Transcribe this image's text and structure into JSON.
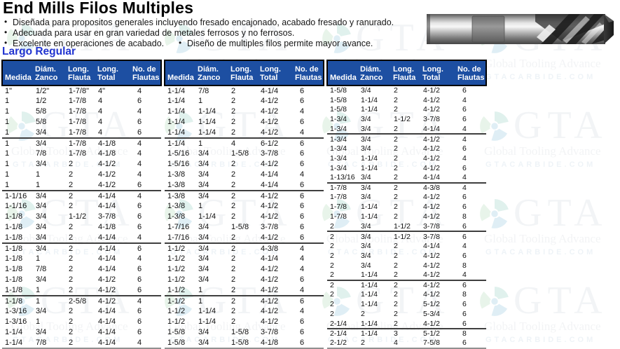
{
  "page": {
    "title": "End Mills Filos Multiples",
    "bullets": [
      "Diseñada para propositos generales incluyendo fresado encajonado, acabado fresado y ranurado.",
      "Adecuada para usar en gran variedad de metales ferrosos y no ferrosos.",
      "Excelente en operaciones de acabado."
    ],
    "bullet_right": "Diseño de multiples filos permite mayor avance.",
    "section_label": "Largo Regular"
  },
  "colors": {
    "table_header_bg": "#1d4fa2",
    "section_label": "#2134d0"
  },
  "watermark": {
    "logo_text": "GTA",
    "tagline": "Global Tooling Advance",
    "site": "GTACARBIDE.COM"
  },
  "table_headers": [
    "Medida",
    "Diám.\nZanco",
    "Long.\nFlauta",
    "Long.\nTotal",
    "No. de\nFlautas"
  ],
  "tables": [
    {
      "rows": [
        [
          "1\"",
          "1/2\"",
          "1-7/8\"",
          "4\"",
          "4"
        ],
        [
          "1",
          "1/2",
          "1-7/8",
          "4",
          "6"
        ],
        [
          "1",
          "5/8",
          "1-7/8",
          "4",
          "4"
        ],
        [
          "1",
          "5/8",
          "1-7/8",
          "4",
          "6"
        ],
        [
          "1",
          "3/4",
          "1-7/8",
          "4",
          "6"
        ],
        [
          "1",
          "3/4",
          "1-7/8",
          "4-1/8",
          "4"
        ],
        [
          "1",
          "7/8",
          "1-7/8",
          "4-1/8",
          "4"
        ],
        [
          "1",
          "3/4",
          "2",
          "4-1/2",
          "4"
        ],
        [
          "1",
          "1",
          "2",
          "4-1/2",
          "4"
        ],
        [
          "1",
          "1",
          "2",
          "4-1/2",
          "6"
        ],
        [
          "1-1/16",
          "3/4",
          "2",
          "4-1/4",
          "4"
        ],
        [
          "1-1/16",
          "3/4",
          "2",
          "4-1/4",
          "6"
        ],
        [
          "1-1/8",
          "3/4",
          "1-1/2",
          "3-7/8",
          "6"
        ],
        [
          "1-1/8",
          "3/4",
          "2",
          "4-1/8",
          "6"
        ],
        [
          "1-1/8",
          "3/4",
          "2",
          "4-1/4",
          "4"
        ],
        [
          "1-1/8",
          "3/4",
          "2",
          "4-1/4",
          "6"
        ],
        [
          "1-1/8",
          "1",
          "2",
          "4-1/4",
          "4"
        ],
        [
          "1-1/8",
          "7/8",
          "2",
          "4-1/4",
          "6"
        ],
        [
          "1-1/8",
          "3/4",
          "2",
          "4-1/2",
          "6"
        ],
        [
          "1-1/8",
          "1",
          "2",
          "4-1/2",
          "6"
        ],
        [
          "1-1/8",
          "1",
          "2-5/8",
          "4-1/2",
          "4"
        ],
        [
          "1-3/16",
          "3/4",
          "2",
          "4-1/4",
          "6"
        ],
        [
          "1-3/16",
          "1",
          "2",
          "4-1/4",
          "6"
        ],
        [
          "1-1/4",
          "3/4",
          "2",
          "4-1/4",
          "6"
        ],
        [
          "1-1/4",
          "7/8",
          "2",
          "4-1/4",
          "4"
        ]
      ]
    },
    {
      "rows": [
        [
          "1-1/4",
          "7/8",
          "2",
          "4-1/4",
          "6"
        ],
        [
          "1-1/4",
          "1",
          "2",
          "4-1/2",
          "6"
        ],
        [
          "1-1/4",
          "1-1/4",
          "2",
          "4-1/2",
          "4"
        ],
        [
          "1-1/4",
          "1-1/4",
          "2",
          "4-1/2",
          "6"
        ],
        [
          "1-1/4",
          "1-1/4",
          "2",
          "4-1/2",
          "4"
        ],
        [
          "1-1/4",
          "1",
          "4",
          "6-1/2",
          "6"
        ],
        [
          "1-5/16",
          "3/4",
          "1-5/8",
          "3-7/8",
          "6"
        ],
        [
          "1-5/16",
          "3/4",
          "2",
          "4-1/2",
          "6"
        ],
        [
          "1-3/8",
          "3/4",
          "2",
          "4-1/4",
          "4"
        ],
        [
          "1-3/8",
          "3/4",
          "2",
          "4-1/4",
          "6"
        ],
        [
          "1-3/8",
          "3/4",
          "2",
          "4-1/2",
          "6"
        ],
        [
          "1-3/8",
          "1",
          "2",
          "4-1/2",
          "6"
        ],
        [
          "1-3/8",
          "1-1/4",
          "2",
          "4-1/2",
          "6"
        ],
        [
          "1-7/16",
          "3/4",
          "1-5/8",
          "3-7/8",
          "6"
        ],
        [
          "1-7/16",
          "3/4",
          "2",
          "4-1/2",
          "6"
        ],
        [
          "1-1/2",
          "3/4",
          "2",
          "4-3/8",
          "4"
        ],
        [
          "1-1/2",
          "3/4",
          "2",
          "4-1/4",
          "4"
        ],
        [
          "1-1/2",
          "3/4",
          "2",
          "4-1/2",
          "4"
        ],
        [
          "1-1/2",
          "3/4",
          "2",
          "4-1/2",
          "6"
        ],
        [
          "1-1/2",
          "1",
          "2",
          "4-1/2",
          "4"
        ],
        [
          "1-1/2",
          "1",
          "2",
          "4-1/2",
          "6"
        ],
        [
          "1-1/2",
          "1-1/4",
          "2",
          "4-1/2",
          "4"
        ],
        [
          "1-1/2",
          "1-1/4",
          "2",
          "4-1/2",
          "6"
        ],
        [
          "1-5/8",
          "3/4",
          "1-5/8",
          "3-7/8",
          "6"
        ],
        [
          "1-5/8",
          "3/4",
          "1-5/8",
          "4-1/8",
          "6"
        ]
      ]
    },
    {
      "rows": [
        [
          "1-5/8",
          "3/4",
          "2",
          "4-1/2",
          "6"
        ],
        [
          "1-5/8",
          "1-1/4",
          "2",
          "4-1/2",
          "4"
        ],
        [
          "1-5/8",
          "1-1/4",
          "2",
          "4-1/2",
          "6"
        ],
        [
          "1-3/4",
          "3/4",
          "1-1/2",
          "3-7/8",
          "6"
        ],
        [
          "1-3/4",
          "3/4",
          "2",
          "4-1/4",
          "4"
        ],
        [
          "1-3/4",
          "3/4",
          "2",
          "4-1/2",
          "4"
        ],
        [
          "1-3/4",
          "3/4",
          "2",
          "4-1/2",
          "6"
        ],
        [
          "1-3/4",
          "1-1/4",
          "2",
          "4-1/2",
          "4"
        ],
        [
          "1-3/4",
          "1-1/4",
          "2",
          "4-1/2",
          "6"
        ],
        [
          "1-13/16",
          "3/4",
          "2",
          "4-1/4",
          "4"
        ],
        [
          "1-7/8",
          "3/4",
          "2",
          "4-3/8",
          "4"
        ],
        [
          "1-7/8",
          "3/4",
          "2",
          "4-1/2",
          "6"
        ],
        [
          "1-7/8",
          "1-1/4",
          "2",
          "4-1/2",
          "6"
        ],
        [
          "1-7/8",
          "1-1/4",
          "2",
          "4-1/2",
          "8"
        ],
        [
          "2",
          "3/4",
          "1-1/2",
          "3-7/8",
          "6"
        ],
        [
          "2",
          "3/4",
          "1-1/2",
          "3-7/8",
          "6"
        ],
        [
          "2",
          "3/4",
          "2",
          "4-1/4",
          "4"
        ],
        [
          "2",
          "3/4",
          "2",
          "4-1/2",
          "6"
        ],
        [
          "2",
          "3/4",
          "2",
          "4-1/2",
          "8"
        ],
        [
          "2",
          "1-1/4",
          "2",
          "4-1/2",
          "4"
        ],
        [
          "2",
          "1-1/4",
          "2",
          "4-1/2",
          "6"
        ],
        [
          "2",
          "1-1/4",
          "2",
          "4-1/2",
          "8"
        ],
        [
          "2",
          "1-1/4",
          "2",
          "5-1/2",
          "6"
        ],
        [
          "2",
          "2",
          "2",
          "5-3/4",
          "6"
        ],
        [
          "2-1/4",
          "1-1/4",
          "2",
          "4-1/2",
          "6"
        ],
        [
          "2-1/4",
          "1-1/4",
          "3",
          "5-1/2",
          "8"
        ],
        [
          "2-1/2",
          "2",
          "4",
          "7-5/8",
          "6"
        ]
      ]
    }
  ]
}
